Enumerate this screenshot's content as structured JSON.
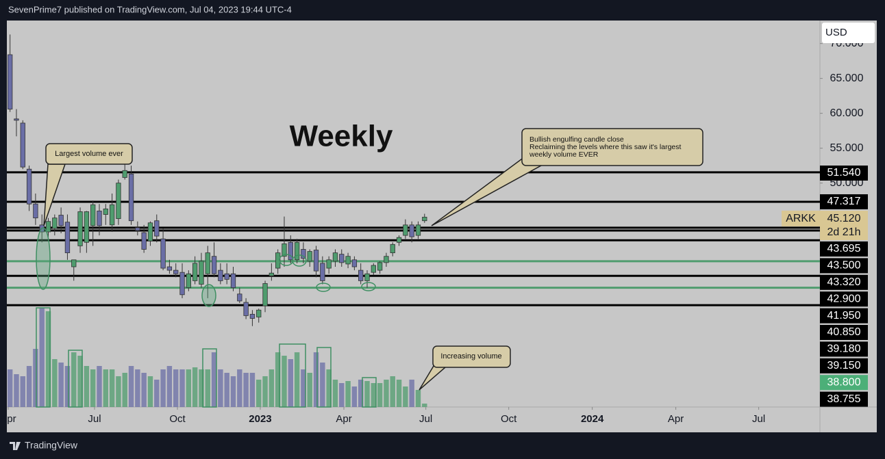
{
  "header": "SevenPrime7 published on TradingView.com, Jul 04, 2023 19:44 UTC-4",
  "footer": "TradingView",
  "currency": "USD",
  "chart_data": {
    "type": "candlestick",
    "title": "Weekly",
    "up_color": "#4f9c6e",
    "down_color": "#6a6ea6",
    "xlim": [
      -0.5,
      127
    ],
    "xticks": [
      {
        "value": -0.29,
        "label": "Apr"
      },
      {
        "value": 13.25,
        "label": "Jul"
      },
      {
        "value": 26.25,
        "label": "Oct"
      },
      {
        "value": 39.24,
        "label": "2023"
      },
      {
        "value": 52.35,
        "label": "Apr"
      },
      {
        "value": 65.2,
        "label": "Jul"
      },
      {
        "value": 78.2,
        "label": "Oct"
      },
      {
        "value": 91.3,
        "label": "2024"
      },
      {
        "value": 104.4,
        "label": "Apr"
      },
      {
        "value": 117.4,
        "label": "Jul"
      }
    ],
    "ylim": [
      17.9,
      73.3
    ],
    "yticks": [
      {
        "value": 50,
        "label": "50.000"
      },
      {
        "value": 55,
        "label": "55.000"
      },
      {
        "value": 60,
        "label": "60.000"
      },
      {
        "value": 65,
        "label": "65.000"
      },
      {
        "value": 70,
        "label": "70.000"
      }
    ],
    "vlim": [
      0,
      565
    ],
    "open": [
      68.4,
      59.2,
      58.6,
      52.0,
      47.0,
      44.0,
      43.0,
      43.5,
      45.4,
      44.4,
      38.0,
      41.0,
      41.5,
      43.9,
      46.0,
      45.5,
      44.0,
      44.9,
      50.8,
      51.3,
      43.6,
      42.9,
      41.7,
      44.6,
      42.0,
      38.0,
      37.5,
      37.2,
      35.0,
      36.0,
      35.5,
      37.0,
      39.5,
      37.5,
      37.0,
      37.0,
      34.1,
      32.9,
      31.2,
      30.8,
      32.4,
      36.7,
      37.8,
      39.5,
      41.5,
      39.0,
      40.5,
      38.8,
      40.4,
      38.5,
      37.8,
      38.8,
      39.8,
      38.4,
      39.0,
      37.5,
      36.0,
      37.2,
      37.5,
      38.6,
      40.0,
      41.5,
      42.5,
      44.0,
      42.5,
      44.6
    ],
    "high": [
      71.3,
      60.6,
      59.0,
      52.5,
      48.5,
      45.5,
      45.0,
      45.5,
      46.5,
      45.5,
      39.0,
      46.5,
      46.0,
      47.5,
      47.0,
      47.0,
      48.5,
      50.5,
      53.0,
      52.5,
      44.5,
      44.0,
      44.5,
      45.5,
      43.5,
      39.0,
      38.5,
      38.5,
      37.5,
      39.5,
      40.0,
      41.0,
      41.5,
      38.5,
      38.5,
      38.0,
      35.0,
      33.5,
      31.8,
      32.0,
      36.0,
      38.5,
      40.5,
      45.2,
      42.5,
      42.0,
      41.5,
      40.5,
      41.0,
      39.5,
      39.5,
      40.5,
      40.5,
      40.0,
      39.5,
      38.5,
      37.5,
      38.5,
      38.8,
      40.0,
      41.5,
      42.5,
      44.8,
      44.5,
      44.5,
      45.6
    ],
    "low": [
      60.2,
      56.7,
      52.0,
      46.0,
      44.0,
      41.5,
      42.0,
      42.5,
      42.8,
      39.0,
      36.0,
      40.0,
      40.0,
      41.0,
      42.5,
      44.0,
      43.0,
      44.0,
      50.5,
      44.0,
      42.5,
      40.0,
      41.0,
      41.5,
      37.5,
      37.0,
      36.5,
      33.5,
      34.5,
      35.5,
      35.0,
      33.5,
      36.5,
      35.5,
      35.5,
      34.5,
      32.8,
      30.5,
      29.5,
      30.0,
      31.5,
      36.0,
      37.0,
      38.0,
      38.5,
      38.5,
      38.5,
      38.0,
      36.5,
      35.5,
      37.0,
      38.0,
      38.0,
      37.8,
      37.5,
      35.5,
      35.0,
      36.8,
      37.0,
      38.0,
      39.5,
      41.0,
      42.0,
      41.5,
      42.0,
      44.3
    ],
    "close": [
      60.6,
      59.0,
      52.3,
      47.0,
      45.0,
      43.0,
      44.5,
      45.0,
      43.9,
      40.0,
      39.0,
      45.9,
      45.9,
      46.9,
      43.9,
      46.3,
      46.9,
      50.0,
      51.8,
      44.6,
      43.2,
      40.5,
      44.3,
      42.4,
      37.8,
      37.5,
      37.0,
      34.0,
      37.0,
      38.5,
      38.8,
      40.0,
      37.0,
      36.0,
      36.2,
      35.0,
      33.1,
      31.0,
      30.6,
      31.8,
      35.6,
      37.1,
      40.0,
      41.3,
      39.0,
      41.5,
      39.2,
      40.2,
      37.4,
      36.0,
      39.0,
      40.0,
      38.6,
      39.5,
      38.0,
      36.0,
      37.0,
      38.2,
      38.6,
      39.5,
      41.2,
      42.2,
      44.0,
      42.3,
      44.0,
      45.12
    ],
    "volume": [
      55,
      48,
      45,
      60,
      85,
      145,
      140,
      70,
      65,
      60,
      80,
      75,
      60,
      55,
      60,
      55,
      55,
      45,
      50,
      60,
      55,
      50,
      45,
      40,
      55,
      60,
      55,
      55,
      55,
      58,
      55,
      55,
      80,
      55,
      50,
      45,
      55,
      50,
      50,
      40,
      45,
      55,
      80,
      75,
      70,
      80,
      55,
      50,
      80,
      65,
      55,
      40,
      35,
      38,
      30,
      40,
      38,
      35,
      35,
      40,
      45,
      40,
      30,
      40,
      25,
      5
    ],
    "levels": [
      {
        "value": 51.54,
        "color": "#000000"
      },
      {
        "value": 47.317,
        "color": "#000000"
      },
      {
        "value": 43.6,
        "color": "#000000"
      },
      {
        "value": 43.2,
        "color": "#000000"
      },
      {
        "value": 41.8,
        "color": "#000000"
      },
      {
        "value": 38.8,
        "color": "#4f9c6e"
      },
      {
        "value": 36.7,
        "color": "#000000"
      },
      {
        "value": 35.0,
        "color": "#4f9c6e"
      },
      {
        "value": 32.5,
        "color": "#000000"
      }
    ],
    "symbol": "ARKK",
    "last_price": "45.120",
    "countdown": "2d 21h",
    "right_labels": [
      {
        "label": "51.540",
        "color": "#000000"
      },
      {
        "label": "47.317",
        "color": "#000000"
      },
      {
        "label": "43.695",
        "color": "#000000"
      },
      {
        "label": "43.500",
        "color": "#000000"
      },
      {
        "label": "43.320",
        "color": "#000000"
      },
      {
        "label": "42.900",
        "color": "#000000"
      },
      {
        "label": "41.950",
        "color": "#000000"
      },
      {
        "label": "40.850",
        "color": "#000000"
      },
      {
        "label": "39.180",
        "color": "#000000"
      },
      {
        "label": "39.150",
        "color": "#000000"
      },
      {
        "label": "38.800",
        "color": "#4caf78"
      },
      {
        "label": "38.755",
        "color": "#000000"
      }
    ],
    "annotations": [
      "Largest volume ever",
      "Bullish engulfing candle close",
      "Reclaiming the levels where this saw it's largest",
      "weekly volume EVER",
      "Increasing volume"
    ]
  }
}
